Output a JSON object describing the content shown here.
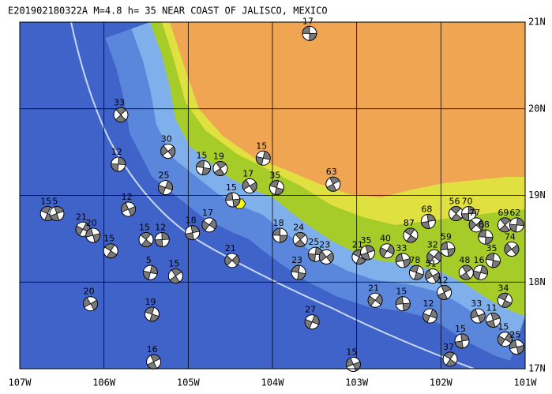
{
  "title": "E201902180322A  M=4.8  h= 35 NEAR COAST OF JALISCO, MEXICO",
  "map": {
    "lonlim": [
      -107,
      -101
    ],
    "latlim": [
      17,
      21
    ],
    "lon_ticks": [
      {
        "value": -107,
        "label": "107W"
      },
      {
        "value": -106,
        "label": "106W"
      },
      {
        "value": -105,
        "label": "105W"
      },
      {
        "value": -104,
        "label": "104W"
      },
      {
        "value": -103,
        "label": "103W"
      },
      {
        "value": -102,
        "label": "102W"
      },
      {
        "value": -101,
        "label": "101W"
      }
    ],
    "lat_ticks": [
      {
        "value": 21,
        "label": "21N"
      },
      {
        "value": 20,
        "label": "20N"
      },
      {
        "value": 19,
        "label": "19N"
      },
      {
        "value": 18,
        "label": "18N"
      },
      {
        "value": 17,
        "label": "17N"
      }
    ]
  },
  "events": [
    {
      "lon": -103.56,
      "lat": 20.87,
      "depth": 17
    },
    {
      "lon": -105.8,
      "lat": 19.93,
      "depth": 33
    },
    {
      "lon": -105.83,
      "lat": 19.36,
      "depth": 12
    },
    {
      "lon": -105.24,
      "lat": 19.51,
      "depth": 30
    },
    {
      "lon": -104.82,
      "lat": 19.32,
      "depth": 15
    },
    {
      "lon": -104.62,
      "lat": 19.31,
      "depth": 19
    },
    {
      "lon": -104.11,
      "lat": 19.43,
      "depth": 15
    },
    {
      "lon": -104.27,
      "lat": 19.11,
      "depth": 17
    },
    {
      "lon": -103.95,
      "lat": 19.09,
      "depth": 35
    },
    {
      "lon": -103.28,
      "lat": 19.13,
      "depth": 63
    },
    {
      "lon": -105.27,
      "lat": 19.09,
      "depth": 25
    },
    {
      "lon": -105.71,
      "lat": 18.84,
      "depth": 12
    },
    {
      "lon": -106.67,
      "lat": 18.79,
      "depth": 15
    },
    {
      "lon": -106.56,
      "lat": 18.79,
      "depth": 5
    },
    {
      "lon": -106.25,
      "lat": 18.61,
      "depth": 21
    },
    {
      "lon": -106.13,
      "lat": 18.54,
      "depth": 20
    },
    {
      "lon": -105.92,
      "lat": 18.36,
      "depth": 15
    },
    {
      "lon": -104.95,
      "lat": 18.57,
      "depth": 18
    },
    {
      "lon": -104.75,
      "lat": 18.66,
      "depth": 17
    },
    {
      "lon": -104.47,
      "lat": 18.95,
      "depth": 15
    },
    {
      "lon": -105.5,
      "lat": 18.49,
      "depth": 15
    },
    {
      "lon": -105.31,
      "lat": 18.49,
      "depth": 12
    },
    {
      "lon": -104.48,
      "lat": 18.25,
      "depth": 21
    },
    {
      "lon": -103.91,
      "lat": 18.54,
      "depth": 18
    },
    {
      "lon": -103.67,
      "lat": 18.49,
      "depth": 24
    },
    {
      "lon": -103.49,
      "lat": 18.32,
      "depth": 25
    },
    {
      "lon": -103.36,
      "lat": 18.29,
      "depth": 23
    },
    {
      "lon": -103.69,
      "lat": 18.11,
      "depth": 23
    },
    {
      "lon": -105.15,
      "lat": 18.07,
      "depth": 15
    },
    {
      "lon": -105.45,
      "lat": 18.11,
      "depth": 5
    },
    {
      "lon": -106.16,
      "lat": 17.75,
      "depth": 20
    },
    {
      "lon": -105.43,
      "lat": 17.63,
      "depth": 19
    },
    {
      "lon": -105.41,
      "lat": 17.08,
      "depth": 16
    },
    {
      "lon": -103.53,
      "lat": 17.54,
      "depth": 27
    },
    {
      "lon": -103.04,
      "lat": 17.05,
      "depth": 15
    },
    {
      "lon": -102.97,
      "lat": 18.29,
      "depth": 21
    },
    {
      "lon": -102.87,
      "lat": 18.34,
      "depth": 35
    },
    {
      "lon": -102.64,
      "lat": 18.36,
      "depth": 40
    },
    {
      "lon": -102.45,
      "lat": 18.25,
      "depth": 33
    },
    {
      "lon": -102.36,
      "lat": 18.54,
      "depth": 87
    },
    {
      "lon": -102.15,
      "lat": 18.7,
      "depth": 68
    },
    {
      "lon": -102.08,
      "lat": 18.29,
      "depth": 32
    },
    {
      "lon": -101.92,
      "lat": 18.38,
      "depth": 59
    },
    {
      "lon": -101.82,
      "lat": 18.79,
      "depth": 56
    },
    {
      "lon": -101.67,
      "lat": 18.79,
      "depth": 70
    },
    {
      "lon": -101.58,
      "lat": 18.66,
      "depth": 77
    },
    {
      "lon": -101.47,
      "lat": 18.52,
      "depth": 68
    },
    {
      "lon": -101.24,
      "lat": 18.66,
      "depth": 69
    },
    {
      "lon": -101.1,
      "lat": 18.66,
      "depth": 62
    },
    {
      "lon": -101.16,
      "lat": 18.38,
      "depth": 74
    },
    {
      "lon": -101.38,
      "lat": 18.25,
      "depth": 35
    },
    {
      "lon": -101.7,
      "lat": 18.11,
      "depth": 48
    },
    {
      "lon": -101.53,
      "lat": 18.11,
      "depth": 16
    },
    {
      "lon": -102.1,
      "lat": 18.07,
      "depth": 51
    },
    {
      "lon": -102.29,
      "lat": 18.11,
      "depth": 78
    },
    {
      "lon": -101.96,
      "lat": 17.88,
      "depth": 12
    },
    {
      "lon": -102.13,
      "lat": 17.61,
      "depth": 12
    },
    {
      "lon": -101.56,
      "lat": 17.61,
      "depth": 33
    },
    {
      "lon": -101.24,
      "lat": 17.79,
      "depth": 34
    },
    {
      "lon": -101.38,
      "lat": 17.56,
      "depth": 11
    },
    {
      "lon": -101.24,
      "lat": 17.34,
      "depth": 15
    },
    {
      "lon": -101.1,
      "lat": 17.25,
      "depth": 25
    },
    {
      "lon": -101.89,
      "lat": 17.11,
      "depth": 37
    },
    {
      "lon": -101.75,
      "lat": 17.32,
      "depth": 15
    },
    {
      "lon": -102.78,
      "lat": 17.79,
      "depth": 21
    },
    {
      "lon": -102.45,
      "lat": 17.75,
      "depth": 15
    }
  ]
}
